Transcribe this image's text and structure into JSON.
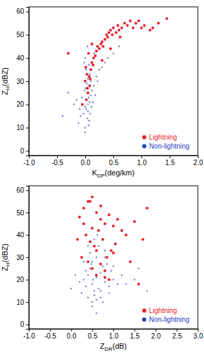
{
  "chart_data": [
    {
      "type": "scatter",
      "y_label": "ZH(dBZ)",
      "x_label": "KDP(deg/km)",
      "xlim": [
        -1.0,
        2.0
      ],
      "xticks": [
        {
          "value": -1.0,
          "label": "-1.0"
        },
        {
          "value": -0.5,
          "label": "-0.5"
        },
        {
          "value": 0,
          "label": "0.0"
        },
        {
          "value": 0.5,
          "label": "0.5"
        },
        {
          "value": 1.0,
          "label": "1.0"
        },
        {
          "value": 1.5,
          "label": "1.5"
        },
        {
          "value": 2.0,
          "label": "2.0"
        }
      ],
      "ylim": [
        -2,
        62
      ],
      "yticks": [
        0,
        10,
        20,
        30,
        40,
        50,
        60
      ],
      "legend": "lower right",
      "series": [
        {
          "name": "Non-lightning",
          "color": "#1f3fbf",
          "marker": "circle",
          "x": [
            -0.1,
            -0.05,
            0.0,
            0.02,
            0.05,
            0.08,
            0.1,
            -0.08,
            -0.03,
            0.03,
            0.06,
            0.12,
            0.15,
            -0.12,
            0.0,
            0.04,
            0.07,
            0.1,
            0.2,
            0.25,
            -0.2,
            -0.15,
            0.01,
            0.03,
            0.05,
            0.08,
            0.02,
            -0.02,
            0.0,
            0.11,
            0.14,
            0.18,
            0.3,
            0.35,
            0.4,
            -0.3,
            0.06,
            0.09,
            -0.06,
            0.0,
            0.04,
            0.16,
            0.22,
            0.5,
            0.6,
            -0.4,
            0.02,
            0.05,
            -0.01,
            0.07
          ],
          "values": [
            18,
            20,
            19,
            22,
            17,
            21,
            24,
            15,
            16,
            25,
            23,
            26,
            28,
            12,
            10,
            14,
            13,
            30,
            32,
            35,
            20,
            22,
            27,
            29,
            31,
            33,
            35,
            38,
            40,
            19,
            21,
            24,
            36,
            38,
            40,
            25,
            11,
            16,
            23,
            8,
            45,
            42,
            30,
            42,
            45,
            15,
            18,
            20,
            26,
            37
          ]
        },
        {
          "name": "Lightning",
          "color": "#e8202a",
          "marker": "circle",
          "x": [
            0.02,
            0.05,
            0.08,
            0.0,
            0.03,
            0.1,
            0.12,
            0.15,
            0.06,
            0.04,
            0.09,
            0.18,
            0.2,
            0.22,
            0.25,
            0.28,
            0.3,
            0.32,
            0.35,
            0.38,
            0.4,
            0.42,
            0.45,
            0.48,
            0.5,
            0.55,
            0.58,
            0.6,
            0.65,
            0.7,
            0.75,
            0.8,
            0.85,
            0.9,
            0.95,
            1.0,
            1.05,
            1.15,
            1.2,
            1.3,
            1.45,
            -0.05,
            0.01,
            0.07,
            0.14,
            -0.3,
            0.3,
            0.45,
            0.62,
            0.12
          ],
          "values": [
            22,
            25,
            28,
            30,
            33,
            35,
            38,
            40,
            42,
            27,
            31,
            41,
            43,
            45,
            44,
            46,
            47,
            45,
            48,
            50,
            49,
            51,
            52,
            50,
            53,
            51,
            54,
            52,
            53,
            55,
            54,
            56,
            53,
            55,
            56,
            53,
            54,
            52,
            53,
            55,
            57,
            20,
            36,
            32,
            37,
            42,
            39,
            44,
            49,
            46
          ]
        }
      ]
    },
    {
      "type": "scatter",
      "y_label": "ZH(dBZ)",
      "x_label": "ZDR(dB)",
      "xlim": [
        -1.0,
        3.0
      ],
      "xticks": [
        {
          "value": -1.0,
          "label": "-1.0"
        },
        {
          "value": -0.5,
          "label": "-0.5"
        },
        {
          "value": 0,
          "label": "0.0"
        },
        {
          "value": 0.5,
          "label": "0.5"
        },
        {
          "value": 1.0,
          "label": "1.0"
        },
        {
          "value": 1.5,
          "label": "1.5"
        },
        {
          "value": 2.0,
          "label": "2.0"
        },
        {
          "value": 2.5,
          "label": "2.5"
        },
        {
          "value": 3.0,
          "label": "3.0"
        }
      ],
      "ylim": [
        -2,
        62
      ],
      "yticks": [
        0,
        10,
        20,
        30,
        40,
        50,
        60
      ],
      "legend": "lower right",
      "series": [
        {
          "name": "Non-lightning",
          "color": "#1f3fbf",
          "marker": "circle",
          "x": [
            0.3,
            0.4,
            0.5,
            0.6,
            0.7,
            0.8,
            0.9,
            0.45,
            0.55,
            0.65,
            0.35,
            0.5,
            0.6,
            0.75,
            0.85,
            1.0,
            1.1,
            1.2,
            0.2,
            0.25,
            0.4,
            0.5,
            0.55,
            0.6,
            0.7,
            0.45,
            0.65,
            0.8,
            0.95,
            1.3,
            1.5,
            0.1,
            0.0,
            0.5,
            0.6,
            0.3,
            0.7,
            0.9,
            1.0,
            0.4,
            0.55,
            0.62,
            0.48,
            0.8,
            1.6,
            0.58,
            0.52,
            0.35,
            0.75,
            1.8
          ],
          "values": [
            20,
            22,
            18,
            21,
            23,
            19,
            17,
            25,
            15,
            16,
            24,
            28,
            30,
            26,
            27,
            20,
            18,
            22,
            19,
            14,
            12,
            10,
            13,
            11,
            15,
            32,
            35,
            30,
            24,
            18,
            20,
            22,
            16,
            8,
            5,
            28,
            12,
            14,
            26,
            35,
            38,
            40,
            27,
            33,
            25,
            22,
            20,
            17,
            10,
            15
          ]
        },
        {
          "name": "Lightning",
          "color": "#e8202a",
          "marker": "circle",
          "x": [
            0.2,
            0.3,
            0.4,
            0.5,
            0.6,
            0.7,
            0.8,
            0.9,
            1.0,
            1.1,
            1.2,
            1.3,
            1.5,
            1.7,
            1.8,
            0.35,
            0.45,
            0.55,
            0.65,
            0.75,
            0.85,
            0.95,
            1.05,
            0.25,
            0.4,
            0.5,
            0.6,
            0.7,
            0.8,
            0.9,
            0.3,
            0.5,
            0.7,
            1.0,
            1.4,
            1.6,
            0.15,
            0.6,
            0.8,
            0.45
          ],
          "values": [
            48,
            52,
            55,
            57,
            50,
            53,
            45,
            49,
            44,
            47,
            42,
            40,
            46,
            38,
            52,
            40,
            37,
            35,
            42,
            38,
            30,
            33,
            36,
            30,
            28,
            25,
            22,
            27,
            24,
            20,
            45,
            43,
            47,
            32,
            28,
            18,
            38,
            33,
            21,
            55
          ]
        }
      ]
    }
  ]
}
